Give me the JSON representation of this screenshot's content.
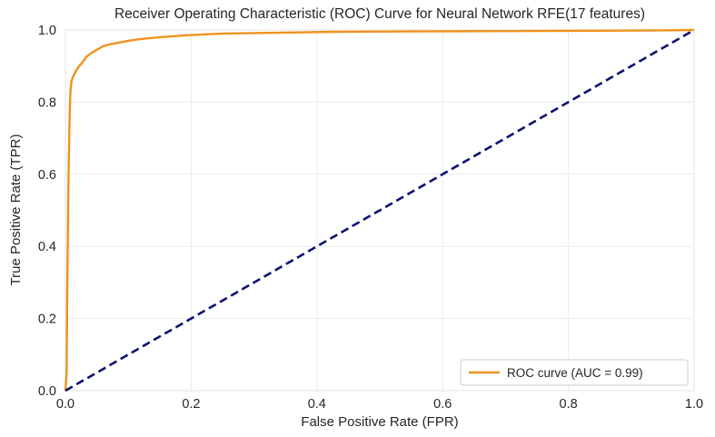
{
  "chart_data": {
    "type": "line",
    "title": "Receiver Operating Characteristic (ROC) Curve for Neural Network RFE(17 features)",
    "xlabel": "False Positive Rate (FPR)",
    "ylabel": "True Positive Rate (TPR)",
    "xlim": [
      0,
      1
    ],
    "ylim": [
      0,
      1
    ],
    "xticks": [
      "0.0",
      "0.2",
      "0.4",
      "0.6",
      "0.8",
      "1.0"
    ],
    "yticks": [
      "0.0",
      "0.2",
      "0.4",
      "0.6",
      "0.8",
      "1.0"
    ],
    "grid": true,
    "legend_position": "lower-right",
    "series": [
      {
        "name": "ROC curve (AUC = 0.99)",
        "color": "#f0921e",
        "style": "solid",
        "x": [
          0.0,
          0.002,
          0.003,
          0.004,
          0.005,
          0.006,
          0.007,
          0.008,
          0.009,
          0.01,
          0.012,
          0.015,
          0.018,
          0.022,
          0.027,
          0.033,
          0.04,
          0.05,
          0.06,
          0.07,
          0.085,
          0.1,
          0.12,
          0.15,
          0.19,
          0.25,
          0.32,
          0.43,
          0.55,
          0.7,
          0.85,
          0.95,
          1.0
        ],
        "y": [
          0.0,
          0.05,
          0.3,
          0.45,
          0.6,
          0.7,
          0.78,
          0.83,
          0.85,
          0.86,
          0.87,
          0.88,
          0.89,
          0.9,
          0.91,
          0.925,
          0.935,
          0.945,
          0.955,
          0.96,
          0.965,
          0.97,
          0.975,
          0.98,
          0.985,
          0.99,
          0.992,
          0.995,
          0.996,
          0.997,
          0.998,
          0.999,
          1.0
        ]
      },
      {
        "name": "",
        "color": "#0c1270",
        "style": "dashed",
        "x": [
          0,
          1
        ],
        "y": [
          0,
          1
        ]
      }
    ]
  }
}
